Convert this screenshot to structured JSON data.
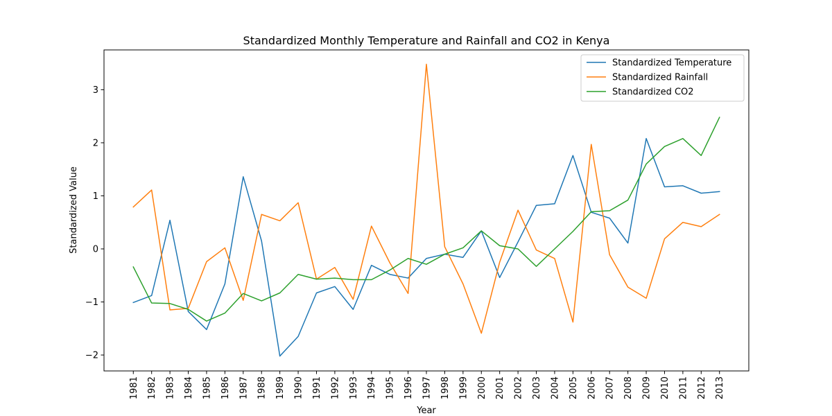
{
  "chart_data": {
    "type": "line",
    "title": "Standardized Monthly Temperature and Rainfall and CO2 in Kenya",
    "xlabel": "Year",
    "ylabel": "Standardized Value",
    "x": [
      1981,
      1982,
      1983,
      1984,
      1985,
      1986,
      1987,
      1988,
      1989,
      1990,
      1991,
      1992,
      1993,
      1994,
      1995,
      1996,
      1997,
      1998,
      1999,
      2000,
      2001,
      2002,
      2003,
      2004,
      2005,
      2006,
      2007,
      2008,
      2009,
      2010,
      2011,
      2012,
      2013
    ],
    "xticks": [
      "1981",
      "1982",
      "1983",
      "1984",
      "1985",
      "1986",
      "1987",
      "1988",
      "1989",
      "1990",
      "1991",
      "1992",
      "1993",
      "1994",
      "1995",
      "1996",
      "1997",
      "1998",
      "1999",
      "2000",
      "2001",
      "2002",
      "2003",
      "2004",
      "2005",
      "2006",
      "2007",
      "2008",
      "2009",
      "2010",
      "2011",
      "2012",
      "2013"
    ],
    "xlim": [
      1979.4,
      2014.6
    ],
    "ylim": [
      -2.3,
      3.75
    ],
    "yticks": [
      -2,
      -1,
      0,
      1,
      2,
      3
    ],
    "ytick_labels": [
      "−2",
      "−1",
      "0",
      "1",
      "2",
      "3"
    ],
    "grid": false,
    "legend_position": "top-right",
    "series": [
      {
        "name": "Standardized Temperature",
        "color": "#1f77b4",
        "values": [
          -1.01,
          -0.88,
          0.54,
          -1.18,
          -1.52,
          -0.66,
          1.36,
          0.15,
          -2.02,
          -1.65,
          -0.83,
          -0.71,
          -1.14,
          -0.31,
          -0.48,
          -0.55,
          -0.18,
          -0.1,
          -0.16,
          0.34,
          -0.54,
          0.13,
          0.82,
          0.85,
          1.76,
          0.69,
          0.58,
          0.11,
          2.08,
          1.17,
          1.19,
          1.05,
          1.08
        ]
      },
      {
        "name": "Standardized Rainfall",
        "color": "#ff7f0e",
        "values": [
          0.79,
          1.11,
          -1.15,
          -1.12,
          -0.24,
          0.02,
          -0.97,
          0.65,
          0.53,
          0.87,
          -0.57,
          -0.35,
          -0.95,
          0.43,
          -0.26,
          -0.84,
          3.48,
          0.04,
          -0.66,
          -1.59,
          -0.25,
          0.73,
          -0.02,
          -0.18,
          -1.38,
          1.97,
          -0.11,
          -0.72,
          -0.93,
          0.19,
          0.5,
          0.42,
          0.65
        ]
      },
      {
        "name": "Standardized CO2",
        "color": "#2ca02c",
        "values": [
          -0.34,
          -1.02,
          -1.03,
          -1.14,
          -1.36,
          -1.21,
          -0.84,
          -0.98,
          -0.83,
          -0.48,
          -0.57,
          -0.55,
          -0.58,
          -0.58,
          -0.4,
          -0.18,
          -0.29,
          -0.1,
          0.02,
          0.34,
          0.06,
          0.0,
          -0.33,
          0.0,
          0.33,
          0.7,
          0.72,
          0.92,
          1.6,
          1.93,
          2.08,
          1.76,
          2.48
        ]
      }
    ]
  }
}
